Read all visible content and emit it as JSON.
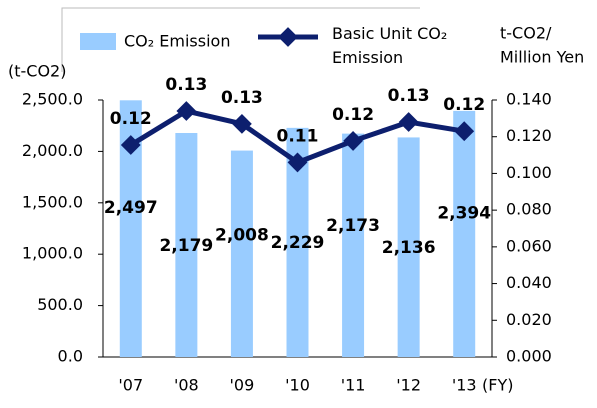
{
  "chart_data": {
    "type": "bar_line",
    "categories": [
      "'07",
      "'08",
      "'09",
      "'10",
      "'11",
      "'12",
      "'13"
    ],
    "series": [
      {
        "name": "CO₂ Emission",
        "type": "bar",
        "color": "#99ccff",
        "values": [
          2497,
          2179,
          2008,
          2229,
          2173,
          2136,
          2394
        ],
        "value_labels": [
          "2,497",
          "2,179",
          "2,008",
          "2,229",
          "2,173",
          "2,136",
          "2,394"
        ]
      },
      {
        "name": "Basic Unit CO₂ Emission",
        "type": "line",
        "axis": "y2",
        "color": "#0d1f6e",
        "values": [
          0.1155,
          0.134,
          0.127,
          0.106,
          0.1177,
          0.128,
          0.123
        ],
        "value_labels": [
          "0.12",
          "0.13",
          "0.13",
          "0.11",
          "0.12",
          "0.13",
          "0.12"
        ]
      }
    ],
    "y_label": "(t-CO2)",
    "y2_label": [
      "t-CO2/",
      "Million Yen"
    ],
    "x_label": "(FY)",
    "ylim": [
      0,
      2500
    ],
    "yticks": [
      {
        "value": 0,
        "label": "0.0"
      },
      {
        "value": 500,
        "label": "500.0"
      },
      {
        "value": 1000,
        "label": "1,000.0"
      },
      {
        "value": 1500,
        "label": "1,500.0"
      },
      {
        "value": 2000,
        "label": "2,000.0"
      },
      {
        "value": 2500,
        "label": "2,500.0"
      }
    ],
    "y2lim": [
      0,
      0.14
    ],
    "y2ticks": [
      {
        "value": 0,
        "label": "0.000"
      },
      {
        "value": 0.02,
        "label": "0.020"
      },
      {
        "value": 0.04,
        "label": "0.040"
      },
      {
        "value": 0.06,
        "label": "0.060"
      },
      {
        "value": 0.08,
        "label": "0.080"
      },
      {
        "value": 0.1,
        "label": "0.100"
      },
      {
        "value": 0.12,
        "label": "0.120"
      },
      {
        "value": 0.14,
        "label": "0.140"
      }
    ],
    "grid": false
  }
}
